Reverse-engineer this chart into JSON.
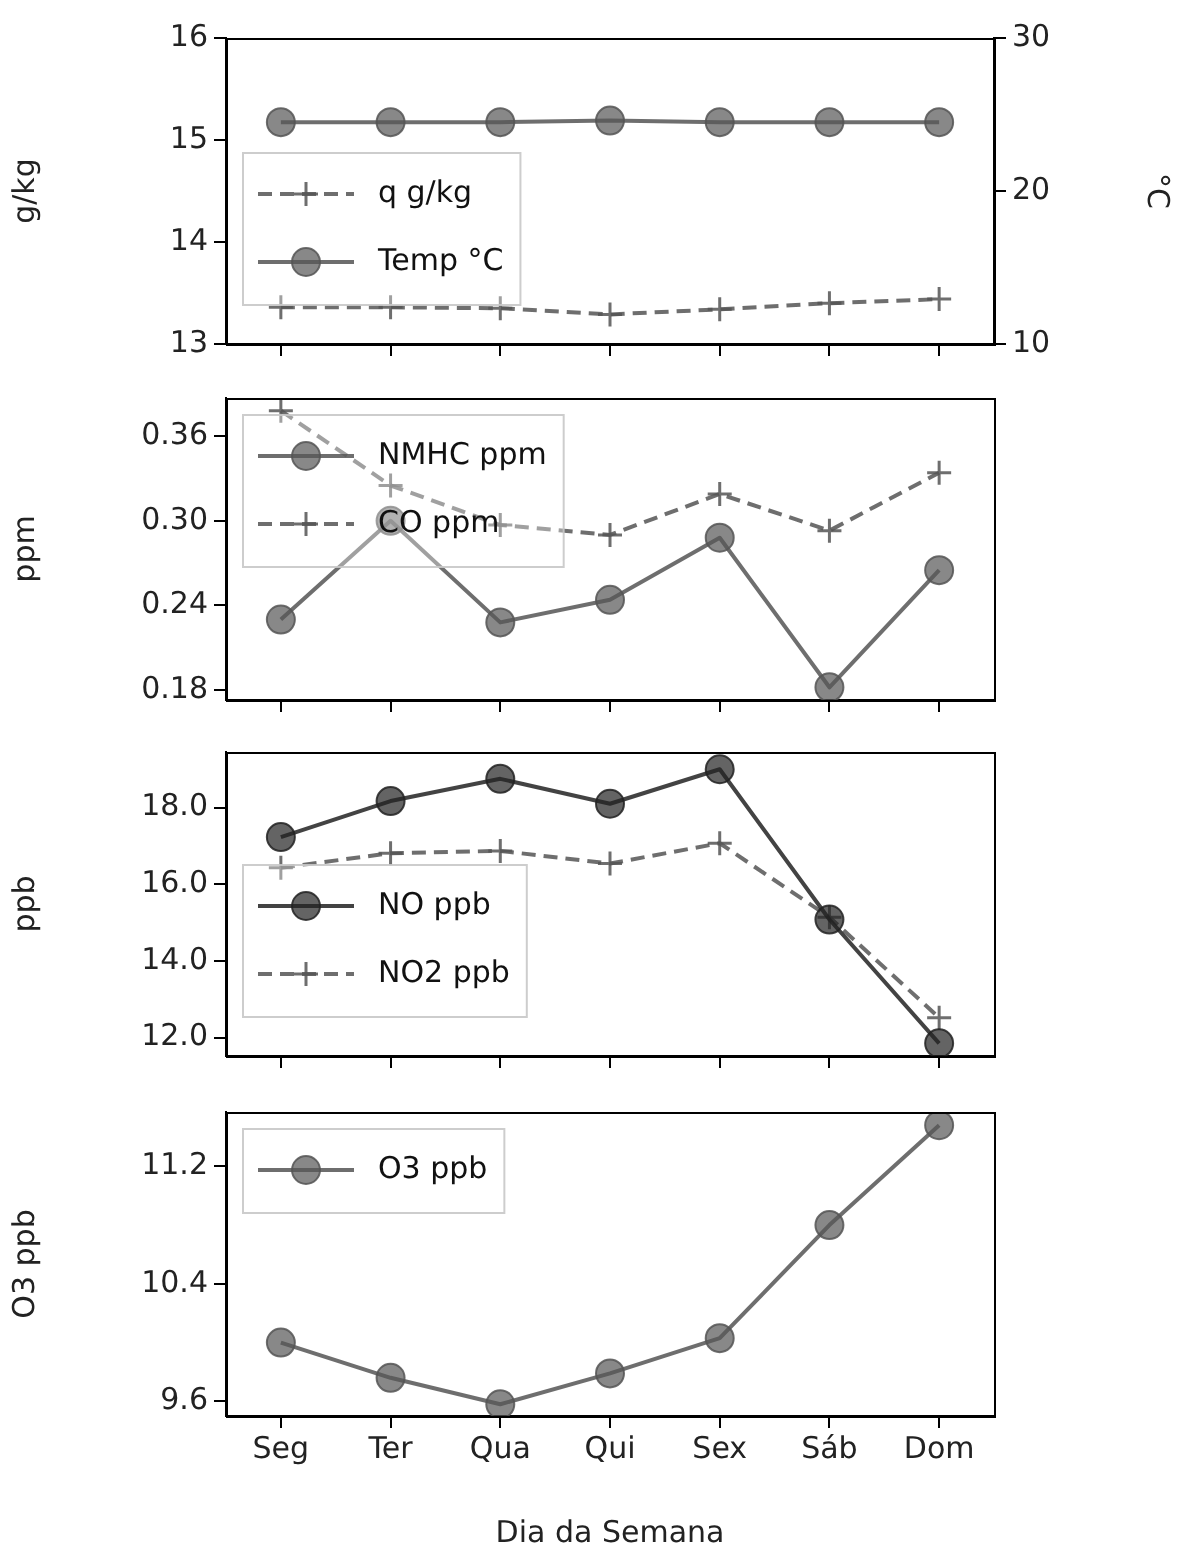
{
  "chart_data": [
    {
      "type": "line",
      "categories": [
        null,
        null,
        null,
        null,
        null,
        null,
        null
      ],
      "ylabel": "g/kg",
      "y2label": "°C",
      "ylim": [
        13,
        16
      ],
      "yticks": [
        13,
        14,
        15,
        16
      ],
      "y2lim": [
        10,
        30
      ],
      "y2ticks": [
        10,
        20,
        30
      ],
      "legend": "bottom left",
      "series": [
        {
          "name": "q g/kg",
          "color": "#555555",
          "marker": "cross",
          "line_style": "dashed",
          "values": [
            13.36,
            13.36,
            13.35,
            13.29,
            13.34,
            13.4,
            13.44
          ]
        },
        {
          "name": "Temp °C",
          "color": "#555555",
          "marker": "circle",
          "line_style": "solid",
          "axis": "y2",
          "values": [
            24.5,
            24.5,
            24.5,
            24.6,
            24.5,
            24.5,
            24.5
          ]
        }
      ]
    },
    {
      "type": "line",
      "categories": [
        null,
        null,
        null,
        null,
        null,
        null,
        null
      ],
      "ylabel": "ppm",
      "ylim": [
        0.173,
        0.387
      ],
      "yticks": [
        {
          "value": 0.18,
          "label": "0.18"
        },
        {
          "value": 0.24,
          "label": "0.24"
        },
        {
          "value": 0.3,
          "label": "0.30"
        },
        {
          "value": 0.36,
          "label": "0.36"
        }
      ],
      "legend": "top left",
      "series": [
        {
          "name": "NMHC ppm",
          "color": "#555555",
          "marker": "circle",
          "line_style": "solid",
          "values": [
            0.23,
            0.3,
            0.228,
            0.244,
            0.288,
            0.182,
            0.265
          ]
        },
        {
          "name": "CO ppm",
          "color": "#555555",
          "marker": "cross",
          "line_style": "dashed",
          "values": [
            0.378,
            0.325,
            0.297,
            0.29,
            0.319,
            0.293,
            0.334
          ]
        }
      ]
    },
    {
      "type": "line",
      "categories": [
        null,
        null,
        null,
        null,
        null,
        null,
        null
      ],
      "ylabel": "ppb",
      "ylim": [
        11.52,
        19.45
      ],
      "yticks": [
        {
          "value": 12,
          "label": "12.0"
        },
        {
          "value": 14,
          "label": "14.0"
        },
        {
          "value": 16,
          "label": "16.0"
        },
        {
          "value": 18,
          "label": "18.0"
        }
      ],
      "legend": "bottom left",
      "series": [
        {
          "name": "NO ppb",
          "color": "#222222",
          "marker": "circle",
          "line_style": "solid",
          "values": [
            17.23,
            18.17,
            18.75,
            18.1,
            19.0,
            15.08,
            11.85
          ]
        },
        {
          "name": "NO2 ppb",
          "color": "#555555",
          "marker": "cross",
          "line_style": "dashed",
          "values": [
            16.43,
            16.81,
            16.87,
            16.54,
            17.07,
            15.14,
            12.52
          ]
        }
      ]
    },
    {
      "type": "line",
      "categories": [
        "Seg",
        "Ter",
        "Qua",
        "Qui",
        "Sex",
        "Sáb",
        "Dom"
      ],
      "ylabel": "O3 ppb",
      "xlabel": "Dia da Semana",
      "ylim": [
        9.5,
        11.57
      ],
      "yticks": [
        9.6,
        10.4,
        11.2
      ],
      "legend": "top left",
      "series": [
        {
          "name": "O3 ppb",
          "color": "#555555",
          "marker": "circle",
          "line_style": "solid",
          "values": [
            10.0,
            9.76,
            9.58,
            9.79,
            10.03,
            10.8,
            11.48
          ]
        }
      ]
    }
  ]
}
